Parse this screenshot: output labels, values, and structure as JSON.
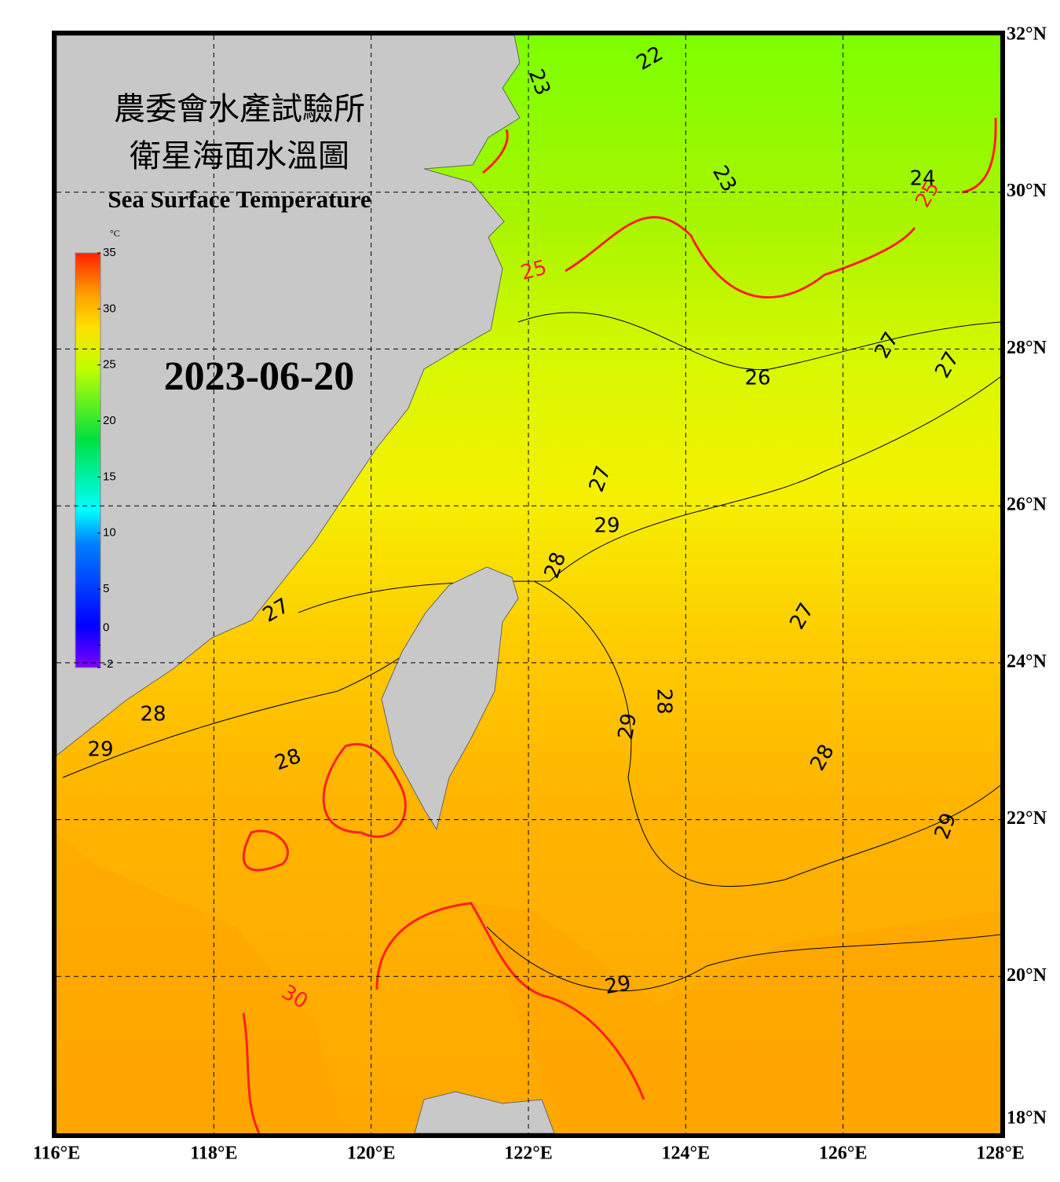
{
  "header": {
    "title_line1": "農委會水產試驗所",
    "title_line2": "衛星海面水溫圖",
    "subtitle": "Sea Surface Temperature",
    "date": "2023-06-20"
  },
  "map": {
    "lon_ticks": [
      {
        "value": 116,
        "label": "116°E"
      },
      {
        "value": 118,
        "label": "118°E"
      },
      {
        "value": 120,
        "label": "120°E"
      },
      {
        "value": 122,
        "label": "122°E"
      },
      {
        "value": 124,
        "label": "124°E"
      },
      {
        "value": 126,
        "label": "126°E"
      },
      {
        "value": 128,
        "label": "128°E"
      }
    ],
    "lat_ticks": [
      {
        "value": 18,
        "label": "18°N"
      },
      {
        "value": 20,
        "label": "20°N"
      },
      {
        "value": 22,
        "label": "22°N"
      },
      {
        "value": 24,
        "label": "24°N"
      },
      {
        "value": 26,
        "label": "26°N"
      },
      {
        "value": 28,
        "label": "28°N"
      },
      {
        "value": 30,
        "label": "30°N"
      },
      {
        "value": 32,
        "label": "32°N"
      }
    ],
    "contour_labels": [
      {
        "text": "22",
        "color": "#000000"
      },
      {
        "text": "23",
        "color": "#000000"
      },
      {
        "text": "23",
        "color": "#000000"
      },
      {
        "text": "24",
        "color": "#000000"
      },
      {
        "text": "25",
        "color": "#ff2020"
      },
      {
        "text": "25",
        "color": "#ff2020"
      },
      {
        "text": "26",
        "color": "#000000"
      },
      {
        "text": "27",
        "color": "#000000"
      },
      {
        "text": "27",
        "color": "#000000"
      },
      {
        "text": "27",
        "color": "#000000"
      },
      {
        "text": "29",
        "color": "#000000"
      },
      {
        "text": "28",
        "color": "#000000"
      },
      {
        "text": "27",
        "color": "#000000"
      },
      {
        "text": "27",
        "color": "#000000"
      },
      {
        "text": "28",
        "color": "#000000"
      },
      {
        "text": "29",
        "color": "#000000"
      },
      {
        "text": "28",
        "color": "#000000"
      },
      {
        "text": "28",
        "color": "#000000"
      },
      {
        "text": "29",
        "color": "#000000"
      },
      {
        "text": "28",
        "color": "#000000"
      },
      {
        "text": "29",
        "color": "#000000"
      },
      {
        "text": "29",
        "color": "#000000"
      },
      {
        "text": "30",
        "color": "#ff2020"
      }
    ]
  },
  "colorbar": {
    "unit": "°C",
    "ticks": [
      -2,
      0,
      5,
      10,
      15,
      20,
      25,
      30,
      35
    ],
    "range": [
      -2,
      35
    ]
  }
}
